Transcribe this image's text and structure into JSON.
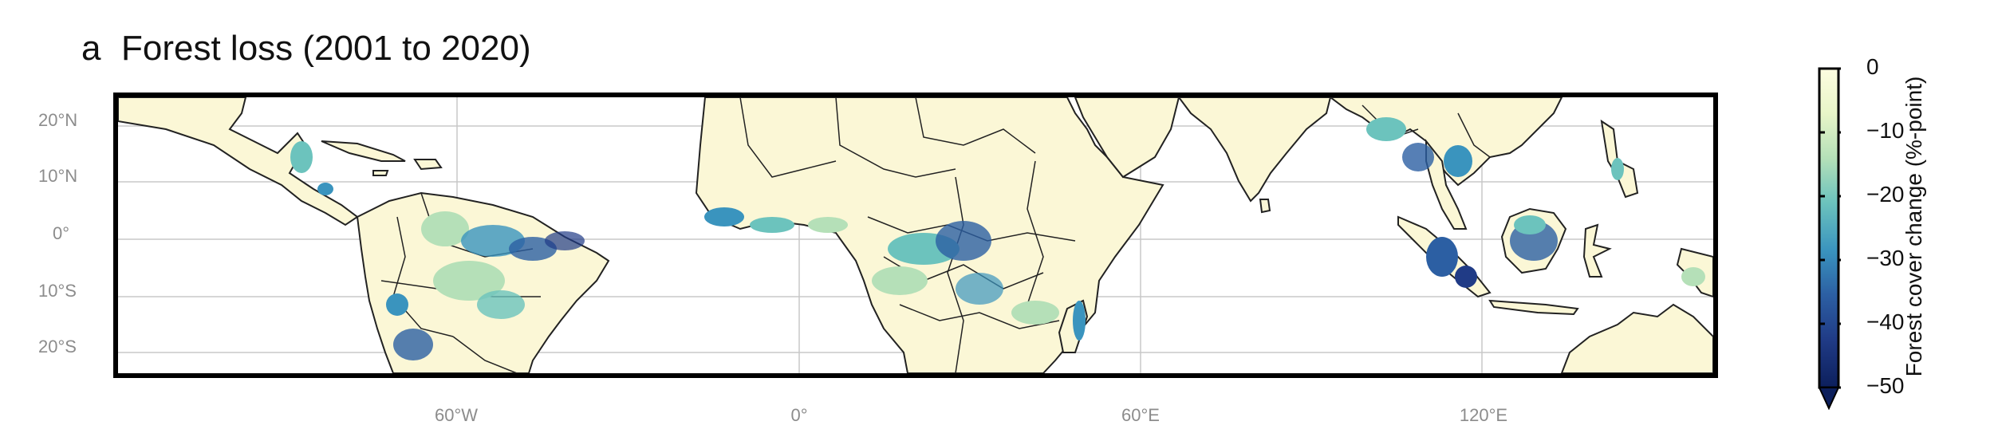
{
  "panel": {
    "label": "a",
    "title": "Forest loss (2001 to 2020)"
  },
  "map": {
    "lat_labels": [
      "20°N",
      "10°N",
      "0°",
      "10°S",
      "20°S"
    ],
    "lon_labels": [
      "60°W",
      "0°",
      "60°E",
      "120°E"
    ],
    "graticule_color": "#c8c8c8",
    "land_color": "#fbf7d6",
    "border_color": "#222222"
  },
  "colorbar": {
    "title": "Forest cover change (%-point)",
    "ticks": [
      "0",
      "−10",
      "−20",
      "−30",
      "−40",
      "−50"
    ],
    "range": [
      -50,
      0
    ],
    "extend": "min",
    "colormap": [
      "#fdfde0",
      "#e8f5c8",
      "#b5e0b8",
      "#6cc3bd",
      "#3a94be",
      "#2c5fa3",
      "#203b86",
      "#0c1f5c"
    ]
  }
}
